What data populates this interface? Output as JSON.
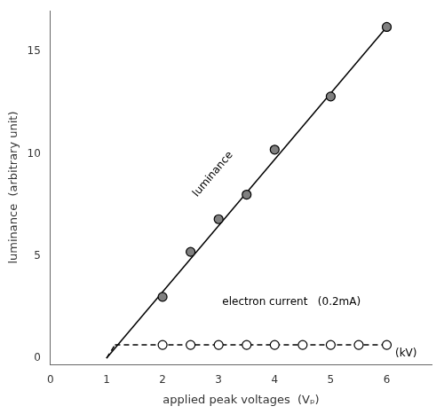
{
  "chart_data": {
    "type": "scatter",
    "xlabel": "applied peak voltages  (Vₚ)",
    "ylabel": "luminance  (arbitrary unit)",
    "series": [
      {
        "type": "line",
        "x": [
          1.0,
          6.0
        ],
        "values": [
          0.0,
          16.2
        ],
        "color": "#000000",
        "line_style": "solid"
      },
      {
        "type": "scatter",
        "x": [
          2.0,
          2.5,
          3.0,
          3.5,
          4.0,
          5.0,
          6.0
        ],
        "values": [
          3.0,
          5.2,
          6.8,
          8.0,
          10.2,
          12.8,
          16.2
        ],
        "color": "#808080",
        "marker": "o"
      },
      {
        "type": "line",
        "x": [
          1.15,
          6.0
        ],
        "values": [
          0.65,
          0.65
        ],
        "color": "#000000",
        "line_style": "dashed"
      },
      {
        "type": "line",
        "x": [
          1.0,
          1.15
        ],
        "values": [
          0.0,
          0.65
        ],
        "color": "#000000",
        "line_style": "dashed"
      },
      {
        "type": "scatter",
        "x": [
          2.0,
          2.5,
          3.0,
          3.5,
          4.0,
          4.5,
          5.0,
          5.5,
          6.0
        ],
        "values": [
          0.65,
          0.65,
          0.65,
          0.65,
          0.65,
          0.65,
          0.65,
          0.65,
          0.65
        ],
        "color": "#ffffff",
        "marker": "o"
      }
    ],
    "annotations": [
      {
        "text": "luminance",
        "x": 2.9,
        "y": 9.0
      },
      {
        "text": "electron current   (0.2mA)",
        "x": 4.3,
        "y": 2.5
      },
      {
        "text": "(kV)",
        "x": 6.15,
        "y": -0.05
      }
    ],
    "xlim": [
      0,
      6.8
    ],
    "ylim": [
      -0.3,
      17
    ],
    "xticks": [
      0,
      1,
      2,
      3,
      4,
      5,
      6
    ],
    "yticks": [
      0,
      5,
      10,
      15
    ],
    "grid": false
  }
}
